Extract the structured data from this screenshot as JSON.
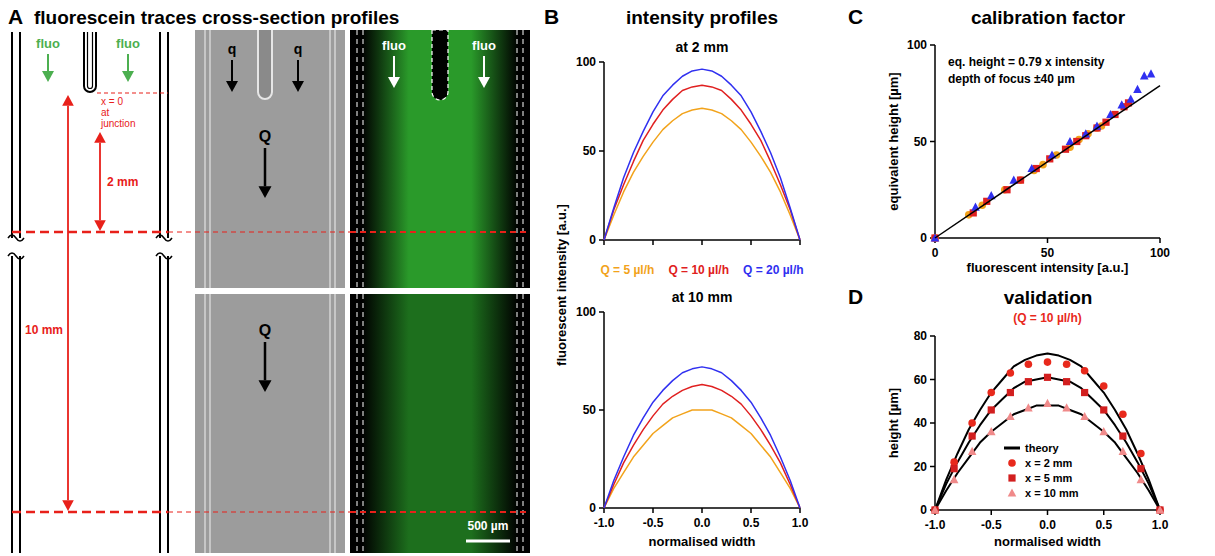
{
  "panels": [
    {
      "letter": "A",
      "title": "fluorescein traces cross-section profiles"
    },
    {
      "letter": "B",
      "title": "intensity profiles"
    },
    {
      "letter": "C",
      "title": "calibration factor"
    },
    {
      "letter": "D",
      "title": "validation"
    }
  ],
  "diagram": {
    "fluo_labels": [
      "fluo",
      "fluo",
      "fluo",
      "fluo"
    ],
    "junction_label": [
      "x = 0",
      "at",
      "junction"
    ],
    "distance_labels": [
      "2 mm",
      "10 mm"
    ],
    "side_flow_labels": [
      "q",
      "q"
    ],
    "main_flow_labels": [
      "Q",
      "Q"
    ],
    "scale_bar": "500 µm"
  },
  "chart_data": [
    {
      "type": "line",
      "title": "at 2 mm",
      "x": [
        -1,
        -0.9,
        -0.8,
        -0.7,
        -0.6,
        -0.5,
        -0.4,
        -0.3,
        -0.2,
        -0.1,
        0,
        0.1,
        0.2,
        0.3,
        0.4,
        0.5,
        0.6,
        0.7,
        0.8,
        0.9,
        1
      ],
      "series": [
        {
          "name": "Q = 5 µl/h",
          "color": "#f2a31b",
          "values": [
            0,
            14,
            27,
            38,
            47,
            55,
            62,
            67,
            71,
            73,
            74,
            73,
            71,
            67,
            62,
            55,
            47,
            38,
            27,
            14,
            0
          ]
        },
        {
          "name": "Q = 10 µl/h",
          "color": "#e02020",
          "values": [
            0,
            17,
            31,
            44,
            56,
            65,
            73,
            79,
            84,
            86,
            87,
            86,
            84,
            79,
            73,
            65,
            56,
            44,
            31,
            17,
            0
          ]
        },
        {
          "name": "Q = 20 µl/h",
          "color": "#3030f0",
          "values": [
            0,
            18,
            35,
            49,
            61,
            72,
            81,
            87,
            92,
            95,
            96,
            95,
            92,
            87,
            81,
            72,
            61,
            49,
            35,
            18,
            0
          ]
        }
      ],
      "xlim": [
        -1,
        1
      ],
      "ylim": [
        0,
        100
      ],
      "xticks": [
        -1,
        -0.5,
        0,
        0.5,
        1
      ],
      "yticks": [
        0,
        50,
        100
      ],
      "y_label": "fluorescent intensity [a.u.]",
      "tick_labels": "y",
      "legend": "bottom"
    },
    {
      "type": "line",
      "title": "at 10 mm",
      "x": [
        -1,
        -0.9,
        -0.8,
        -0.7,
        -0.6,
        -0.5,
        -0.4,
        -0.3,
        -0.2,
        -0.1,
        0,
        0.1,
        0.2,
        0.3,
        0.4,
        0.5,
        0.6,
        0.7,
        0.8,
        0.9,
        1
      ],
      "series": [
        {
          "color": "#f2a31b",
          "values": [
            0,
            10,
            18,
            26,
            32,
            38,
            42,
            46,
            48,
            50,
            50,
            50,
            48,
            46,
            42,
            38,
            32,
            26,
            18,
            10,
            0
          ]
        },
        {
          "color": "#e02020",
          "values": [
            0,
            12,
            23,
            32,
            40,
            47,
            53,
            57,
            60,
            62,
            63,
            62,
            60,
            57,
            53,
            47,
            40,
            32,
            23,
            12,
            0
          ]
        },
        {
          "color": "#3030f0",
          "values": [
            0,
            14,
            26,
            37,
            46,
            54,
            60,
            65,
            69,
            71,
            72,
            71,
            69,
            65,
            60,
            54,
            46,
            37,
            26,
            14,
            0
          ]
        }
      ],
      "xlim": [
        -1,
        1
      ],
      "ylim": [
        0,
        100
      ],
      "xticks": [
        {
          "value": -1,
          "label": "-1.0"
        },
        {
          "value": -0.5,
          "label": "-0.5"
        },
        {
          "value": 0,
          "label": "0.0"
        },
        {
          "value": 0.5,
          "label": "0.5"
        },
        {
          "value": 1,
          "label": "1.0"
        }
      ],
      "yticks": [
        0,
        50,
        100
      ],
      "x_label": "normalised width"
    },
    {
      "type": "scatter",
      "series": [
        {
          "color": "#f2a31b",
          "marker": "circle",
          "x": [
            0,
            15,
            21,
            31,
            38,
            44,
            48,
            54,
            60,
            64,
            68,
            72,
            74
          ],
          "values": [
            0,
            12,
            17,
            25,
            30,
            35,
            38,
            43,
            47,
            51,
            54,
            57,
            58
          ]
        },
        {
          "color": "#e02020",
          "marker": "square",
          "x": [
            0,
            17,
            23,
            32,
            38,
            45,
            51,
            58,
            63,
            67,
            72,
            76,
            80,
            84,
            86
          ],
          "values": [
            0,
            13,
            19,
            25,
            30,
            36,
            41,
            46,
            50,
            53,
            57,
            60,
            64,
            68,
            70
          ]
        },
        {
          "color": "#3030f0",
          "marker": "triangle",
          "x": [
            0,
            18,
            25,
            35,
            43,
            52,
            60,
            67,
            72,
            78,
            83,
            87,
            90,
            93,
            96
          ],
          "values": [
            0,
            16,
            22,
            30,
            36,
            43,
            50,
            54,
            58,
            64,
            69,
            72,
            77,
            84,
            85
          ]
        },
        {
          "type": "line",
          "color": "#000000",
          "x": [
            0,
            100
          ],
          "values": [
            0,
            79
          ]
        }
      ],
      "xlim": [
        0,
        100
      ],
      "ylim": [
        0,
        100
      ],
      "xticks": [
        0,
        50,
        100
      ],
      "yticks": [
        0,
        50,
        100
      ],
      "x_label": "fluorescent intensity [a.u.]",
      "y_label": "equivalent height [µm]",
      "annotations": [
        "eq. height = 0.79 x intensity",
        "depth of focus ±40 µm"
      ]
    },
    {
      "type": "line",
      "subtitle": "(Q = 10 µl/h)",
      "series": [
        {
          "name": "theory",
          "type": "line",
          "color": "#000000",
          "x": [
            -1,
            -0.9,
            -0.8,
            -0.7,
            -0.6,
            -0.5,
            -0.4,
            -0.3,
            -0.2,
            -0.1,
            0,
            0.1,
            0.2,
            0.3,
            0.4,
            0.5,
            0.6,
            0.7,
            0.8,
            0.9,
            1
          ],
          "values": [
            0,
            14,
            26,
            37,
            46,
            54,
            60,
            66,
            69,
            71,
            72,
            71,
            69,
            66,
            60,
            54,
            46,
            37,
            26,
            14,
            0
          ]
        },
        {
          "type": "line",
          "color": "#000000",
          "x": [
            -1,
            -0.9,
            -0.8,
            -0.7,
            -0.6,
            -0.5,
            -0.4,
            -0.3,
            -0.2,
            -0.1,
            0,
            0.1,
            0.2,
            0.3,
            0.4,
            0.5,
            0.6,
            0.7,
            0.8,
            0.9,
            1
          ],
          "values": [
            0,
            12,
            22,
            31,
            39,
            46,
            51,
            56,
            59,
            60,
            61,
            60,
            59,
            56,
            51,
            46,
            39,
            31,
            22,
            12,
            0
          ]
        },
        {
          "type": "line",
          "color": "#000000",
          "x": [
            -1,
            -0.9,
            -0.8,
            -0.7,
            -0.6,
            -0.5,
            -0.4,
            -0.3,
            -0.2,
            -0.1,
            0,
            0.1,
            0.2,
            0.3,
            0.4,
            0.5,
            0.6,
            0.7,
            0.8,
            0.9,
            1
          ],
          "values": [
            0,
            9,
            17,
            24,
            31,
            36,
            40,
            44,
            46,
            48,
            48,
            48,
            46,
            44,
            40,
            36,
            31,
            24,
            17,
            9,
            0
          ]
        },
        {
          "name": "x = 2 mm",
          "type": "scatter",
          "marker": "circle",
          "color": "#e8291c",
          "x": [
            -1,
            -0.83,
            -0.67,
            -0.5,
            -0.33,
            -0.17,
            0,
            0.17,
            0.33,
            0.5,
            0.67,
            0.83,
            1
          ],
          "values": [
            0,
            22,
            40,
            54,
            63,
            67,
            68,
            67,
            64,
            57,
            44,
            26,
            0
          ]
        },
        {
          "name": "x = 5 mm",
          "type": "scatter",
          "marker": "square",
          "color": "#d21f1f",
          "x": [
            -1,
            -0.83,
            -0.67,
            -0.5,
            -0.33,
            -0.17,
            0,
            0.17,
            0.33,
            0.5,
            0.67,
            0.83,
            1
          ],
          "values": [
            0,
            19,
            34,
            46,
            54,
            59,
            61,
            59,
            54,
            46,
            34,
            19,
            0
          ]
        },
        {
          "name": "x = 10 mm",
          "type": "scatter",
          "marker": "triangle",
          "color": "#f08a8a",
          "x": [
            -1,
            -0.83,
            -0.67,
            -0.5,
            -0.33,
            -0.17,
            0,
            0.17,
            0.33,
            0.5,
            0.67,
            0.83,
            1
          ],
          "values": [
            0,
            14,
            27,
            36,
            43,
            47,
            49,
            47,
            43,
            36,
            27,
            14,
            0
          ]
        }
      ],
      "xlim": [
        -1,
        1
      ],
      "ylim": [
        0,
        80
      ],
      "xticks": [
        {
          "value": -1,
          "label": "-1.0"
        },
        {
          "value": -0.5,
          "label": "-0.5"
        },
        {
          "value": 0,
          "label": "0.0"
        },
        {
          "value": 0.5,
          "label": "0.5"
        },
        {
          "value": 1,
          "label": "1.0"
        }
      ],
      "yticks": [
        0,
        20,
        40,
        60,
        80
      ],
      "x_label": "normalised width",
      "y_label": "height [µm]",
      "legend": "bottom"
    }
  ]
}
